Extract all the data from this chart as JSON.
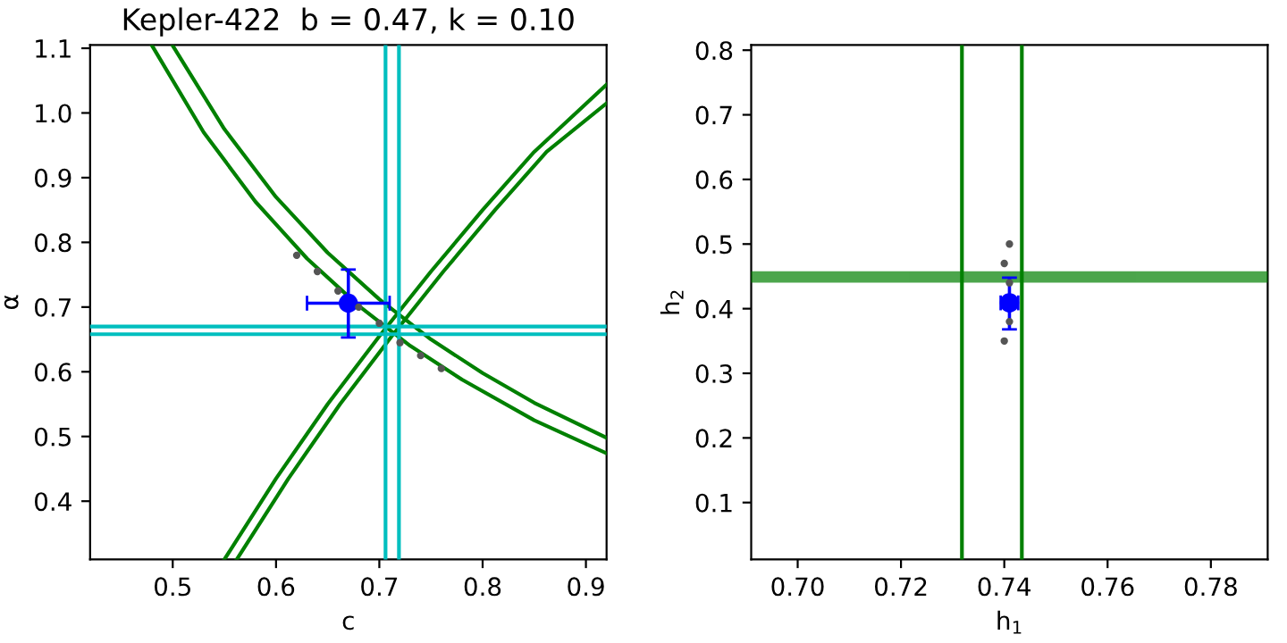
{
  "chart_data": [
    {
      "type": "line",
      "title": "Kepler-422  b = 0.47, k = 0.10",
      "xlabel": "c",
      "ylabel": "α",
      "xlim": [
        0.42,
        0.92
      ],
      "ylim": [
        0.31,
        1.105
      ],
      "xticks": [
        0.5,
        0.6,
        0.7,
        0.8,
        0.9
      ],
      "yticks": [
        0.4,
        0.5,
        0.6,
        0.7,
        0.8,
        0.9,
        {
          "value": 1.0,
          "label": "1.0"
        },
        1.1
      ],
      "grid": false,
      "legend": false,
      "series": [
        {
          "type": "scatter",
          "color": "#555555",
          "x": [
            0.62,
            0.64,
            0.66,
            0.68,
            0.7,
            0.72,
            0.74,
            0.76
          ],
          "values": [
            0.78,
            0.755,
            0.725,
            0.7,
            0.675,
            0.645,
            0.625,
            0.605
          ]
        },
        {
          "color": "#008000",
          "x": [
            0.5,
            0.55,
            0.6,
            0.65,
            0.7,
            0.75,
            0.8,
            0.85,
            0.92
          ],
          "values": [
            1.104,
            0.975,
            0.87,
            0.784,
            0.712,
            0.65,
            0.598,
            0.552,
            0.498
          ]
        },
        {
          "color": "#008000",
          "x": [
            0.48,
            0.53,
            0.58,
            0.63,
            0.68,
            0.73,
            0.78,
            0.85,
            0.92
          ],
          "values": [
            1.104,
            0.97,
            0.863,
            0.775,
            0.702,
            0.64,
            0.588,
            0.525,
            0.474
          ]
        },
        {
          "color": "#008000",
          "x": [
            0.55,
            0.6,
            0.65,
            0.7,
            0.75,
            0.8,
            0.85,
            0.92
          ],
          "values": [
            0.31,
            0.435,
            0.55,
            0.655,
            0.755,
            0.85,
            0.94,
            1.044
          ]
        },
        {
          "color": "#008000",
          "x": [
            0.562,
            0.612,
            0.662,
            0.712,
            0.762,
            0.812,
            0.862,
            0.92
          ],
          "values": [
            0.31,
            0.435,
            0.55,
            0.655,
            0.755,
            0.85,
            0.94,
            1.015
          ]
        },
        {
          "type": "scatter",
          "color": "#0000ff",
          "marker": "circle",
          "x": [
            0.67
          ],
          "values": [
            0.706
          ],
          "errors": [
            [
              0.653,
              0.758
            ]
          ],
          "xerrors": [
            [
              0.63,
              0.71
            ]
          ]
        }
      ],
      "ref_lines": [
        {
          "axis": "x",
          "value": 0.706,
          "color": "#00bfbf"
        },
        {
          "axis": "x",
          "value": 0.719,
          "color": "#00bfbf"
        },
        {
          "axis": "y",
          "value": 0.658,
          "color": "#00bfbf"
        },
        {
          "axis": "y",
          "value": 0.67,
          "color": "#00bfbf"
        }
      ]
    },
    {
      "type": "scatter",
      "xlabel": "h$_{1}$",
      "ylabel": "h$_{2}$",
      "xlim": [
        0.691,
        0.791
      ],
      "ylim": [
        0.012,
        0.808
      ],
      "xticks": [
        {
          "value": 0.7,
          "label": "0.70"
        },
        0.72,
        0.74,
        0.76,
        0.78
      ],
      "yticks": [
        0.1,
        0.2,
        0.3,
        0.4,
        0.5,
        0.6,
        0.7,
        0.8
      ],
      "grid": false,
      "legend": false,
      "series": [
        {
          "color": "#555555",
          "x": [
            0.74,
            0.741,
            0.741,
            0.74,
            0.741
          ],
          "values": [
            0.35,
            0.38,
            0.44,
            0.47,
            0.5
          ]
        },
        {
          "color": "#0000ff",
          "marker": "circle",
          "x": [
            0.741
          ],
          "values": [
            0.409
          ],
          "errors": [
            [
              0.368,
              0.448
            ]
          ],
          "xerrors": [
            [
              0.7393,
              0.7427
            ]
          ]
        }
      ],
      "ref_lines": [
        {
          "axis": "x",
          "value": 0.7318,
          "color": "#008000"
        },
        {
          "axis": "x",
          "value": 0.7434,
          "color": "#008000"
        }
      ],
      "bands": [
        {
          "axis": "y",
          "from": 0.443,
          "to": 0.455,
          "color": "#008000"
        }
      ]
    }
  ]
}
